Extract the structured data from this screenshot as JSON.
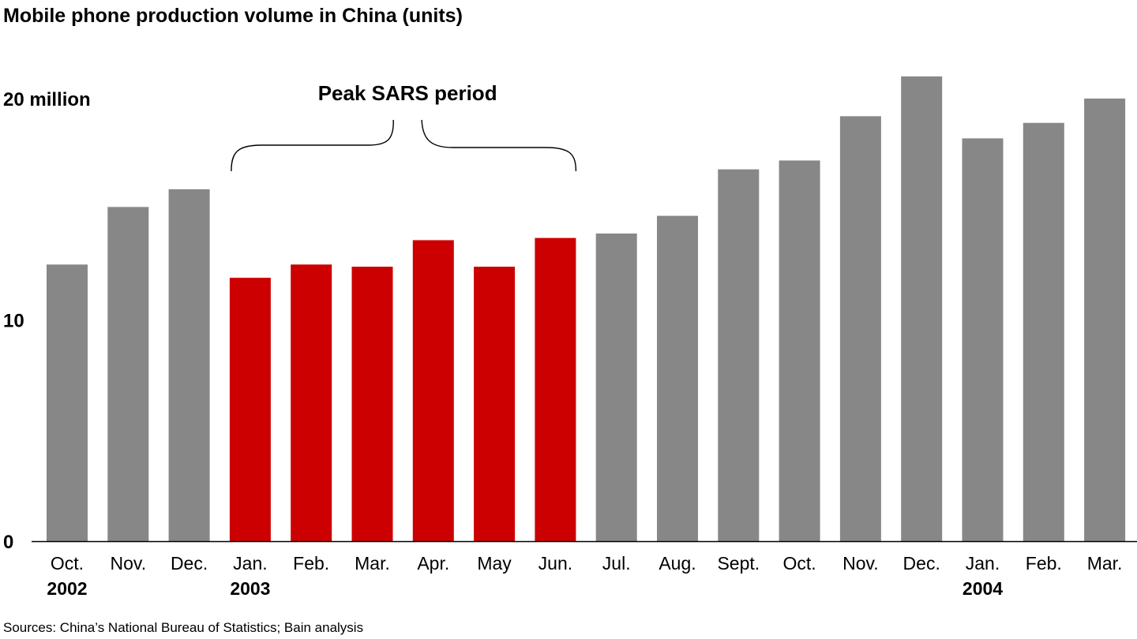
{
  "chart_data": {
    "type": "bar",
    "title": "Mobile phone production volume in China (units)",
    "categories": [
      "Oct.",
      "Nov.",
      "Dec.",
      "Jan.",
      "Feb.",
      "Mar.",
      "Apr.",
      "May",
      "Jun.",
      "Jul.",
      "Aug.",
      "Sept.",
      "Oct.",
      "Nov.",
      "Dec.",
      "Jan.",
      "Feb.",
      "Mar."
    ],
    "years": [
      "2002",
      "",
      "",
      "2003",
      "",
      "",
      "",
      "",
      "",
      "",
      "",
      "",
      "",
      "",
      "",
      "2004",
      "",
      ""
    ],
    "values": [
      12.5,
      15.1,
      15.9,
      11.9,
      12.5,
      12.4,
      13.6,
      12.4,
      13.7,
      13.9,
      14.7,
      16.8,
      17.2,
      19.2,
      21.0,
      18.2,
      18.9,
      20.0
    ],
    "highlight": [
      false,
      false,
      false,
      true,
      true,
      true,
      true,
      true,
      true,
      false,
      false,
      false,
      false,
      false,
      false,
      false,
      false,
      false
    ],
    "y_ticks": [
      {
        "value": 0,
        "label": "0"
      },
      {
        "value": 10,
        "label": "10"
      },
      {
        "value": 20,
        "label": "20 million"
      }
    ],
    "ylim": [
      0,
      21.6
    ],
    "annotation": {
      "label": "Peak SARS period",
      "from_index": 3,
      "to_index": 8
    },
    "colors": {
      "default": "#878787",
      "highlight": "#cc0000",
      "axis": "#000000"
    },
    "grid": false,
    "legend": "none"
  },
  "source": "Sources: China’s National Bureau of Statistics; Bain analysis"
}
